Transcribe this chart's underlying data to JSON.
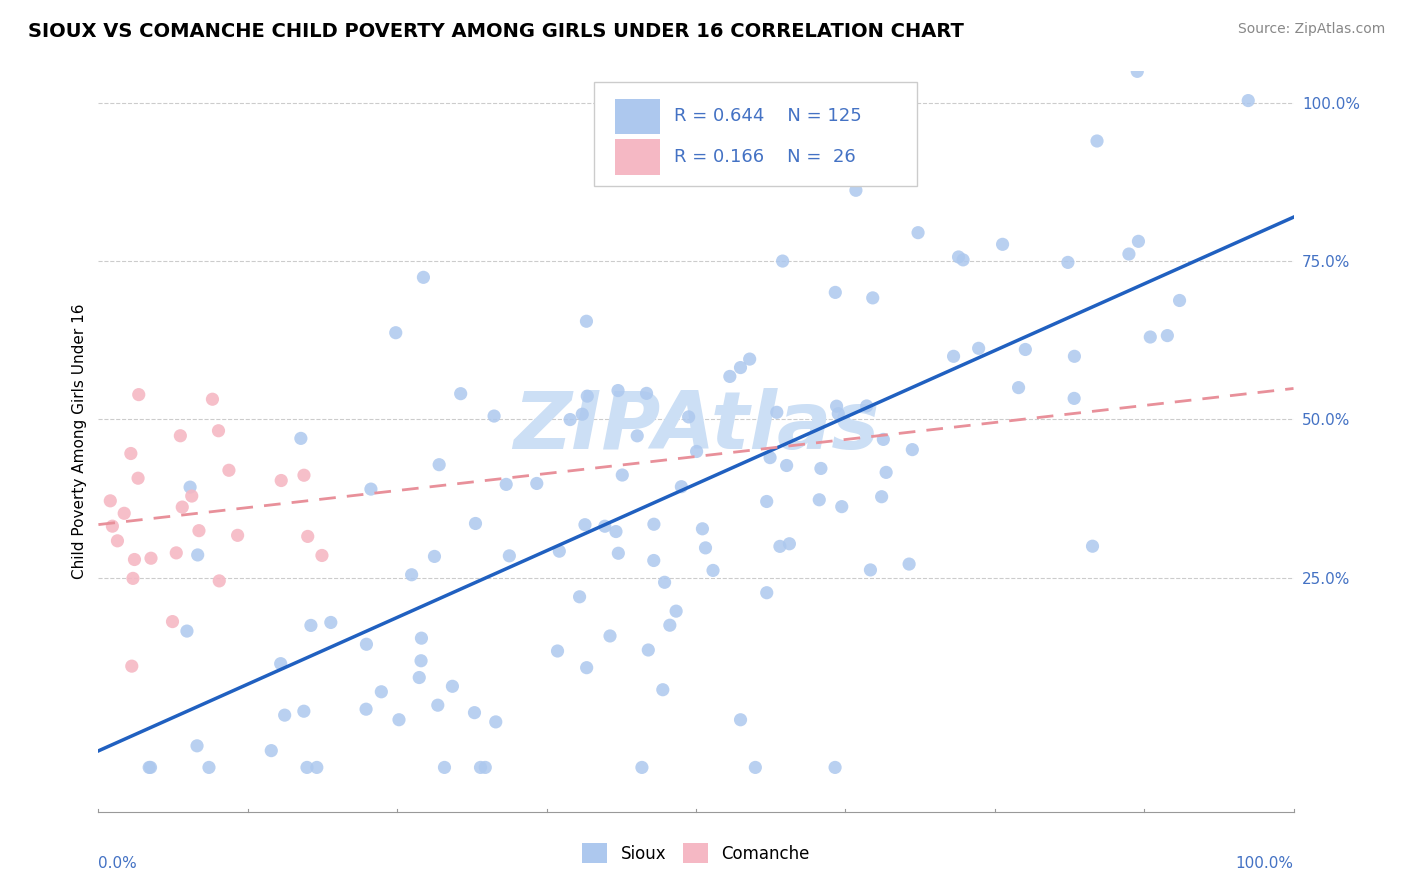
{
  "title": "SIOUX VS COMANCHE CHILD POVERTY AMONG GIRLS UNDER 16 CORRELATION CHART",
  "source": "Source: ZipAtlas.com",
  "ylabel": "Child Poverty Among Girls Under 16",
  "sioux_R": "R = 0.644",
  "sioux_N": "N = 125",
  "comanche_R": "R = 0.166",
  "comanche_N": "N = 26",
  "sioux_color": "#adc8ee",
  "comanche_color": "#f5b8c4",
  "sioux_line_color": "#2060c0",
  "comanche_line_color": "#e8909a",
  "watermark_color": "#ccdff5",
  "background_color": "#ffffff",
  "ytick_color": "#4472c4",
  "grid_color": "#cccccc",
  "title_fontsize": 14,
  "source_fontsize": 10,
  "ylabel_fontsize": 11,
  "ytick_fontsize": 11,
  "legend_fontsize": 13
}
